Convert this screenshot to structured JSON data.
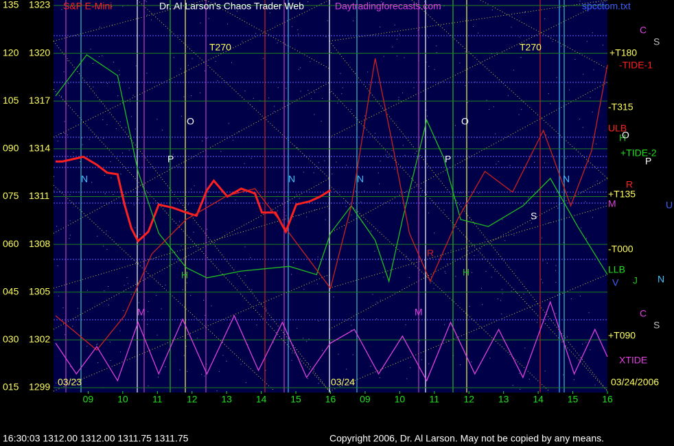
{
  "chart_data": {
    "type": "line",
    "title": "Dr. Al Larson's Chaos Trader Web",
    "subtitle": "S&P E-Mini",
    "source": "Daytradingforecasts.com",
    "file": "spcctom.txt",
    "dates": [
      "03/23",
      "03/24",
      "03/24/2006"
    ],
    "quote": "16:30:03  1312.00 1312.00 1311.75 1311.75",
    "copyright": "Copyright 2006, Dr. Al Larson. May not be copied by any means.",
    "xlim": [
      8,
      24
    ],
    "xticks": [
      {
        "value": 9,
        "label": "09"
      },
      10,
      11,
      12,
      13,
      14,
      15,
      16,
      {
        "value": 17,
        "label": "09"
      },
      {
        "value": 18,
        "label": "10"
      },
      {
        "value": 19,
        "label": "11"
      },
      {
        "value": 20,
        "label": "12"
      },
      {
        "value": 21,
        "label": "13"
      },
      {
        "value": 22,
        "label": "14"
      },
      {
        "value": 23,
        "label": "15"
      },
      {
        "value": 24,
        "label": "16"
      }
    ],
    "ylim": [
      1299,
      1323
    ],
    "yticks": [
      1323,
      1320,
      1317,
      1314,
      1311,
      1308,
      1305,
      1302,
      1299
    ],
    "y2lim": [
      15,
      135
    ],
    "y2ticks": [
      135,
      120,
      105,
      {
        "value": 90,
        "label": "090"
      },
      {
        "value": 75,
        "label": "075"
      },
      {
        "value": 60,
        "label": "060"
      },
      {
        "value": 45,
        "label": "045"
      },
      {
        "value": 30,
        "label": "030"
      },
      {
        "value": 15,
        "label": "015"
      }
    ],
    "grid": true,
    "series": [
      {
        "color": "#ff2020",
        "x": [
          8.06,
          8.26,
          8.86,
          9.25,
          9.55,
          9.85,
          10.05,
          10.25,
          10.44,
          10.74,
          11.04,
          11.44,
          11.83,
          12.13,
          12.43,
          12.63,
          13.02,
          13.42,
          13.82,
          14.02,
          14.41,
          14.71,
          15.01,
          15.4,
          15.7,
          16.0
        ],
        "values": [
          1313.2,
          1313.2,
          1313.5,
          1313.0,
          1312.5,
          1312.4,
          1310.5,
          1309.0,
          1308.2,
          1308.8,
          1310.5,
          1310.3,
          1310.0,
          1309.8,
          1311.4,
          1312.0,
          1311.0,
          1311.5,
          1311.2,
          1310.0,
          1310.0,
          1308.8,
          1310.5,
          1310.7,
          1311.0,
          1311.4
        ]
      },
      {
        "color": "#20c020",
        "axis": "y2",
        "x": [
          8.06,
          8.96,
          9.85,
          10.44,
          11.04,
          11.83,
          12.43,
          13.42,
          14.81,
          15.6,
          16.0,
          16.6,
          17.29,
          17.69,
          18.08,
          18.78,
          19.27,
          19.76,
          20.56,
          21.56,
          22.35,
          23.14,
          24.0
        ],
        "values": [
          106.6,
          119.5,
          113.0,
          82.9,
          63.5,
          52.7,
          49.5,
          51.6,
          53.1,
          50.5,
          63.5,
          72.1,
          61.3,
          48.4,
          67.8,
          99.0,
          87.2,
          67.8,
          65.6,
          72.1,
          80.7,
          65.6,
          50.5
        ]
      },
      {
        "color": "#d02020",
        "axis": "y2",
        "x": [
          8.06,
          9.25,
          10.05,
          10.84,
          11.83,
          13.02,
          13.82,
          14.81,
          16.0,
          16.6,
          17.29,
          17.79,
          18.28,
          18.88,
          19.67,
          20.46,
          21.26,
          22.15,
          22.94,
          23.54,
          24.0
        ],
        "values": [
          37.6,
          26.8,
          37.6,
          57.0,
          67.8,
          75.3,
          77.5,
          63.5,
          46.2,
          72.1,
          118.4,
          91.5,
          63.5,
          48.4,
          67.8,
          82.9,
          76.4,
          95.8,
          72.1,
          89.3,
          116.3
        ]
      },
      {
        "color": "#e040e0",
        "axis": "y2",
        "x": [
          8.06,
          8.66,
          9.25,
          9.85,
          10.44,
          11.04,
          11.73,
          12.43,
          13.22,
          13.92,
          14.61,
          15.31,
          16.0,
          16.69,
          17.39,
          18.08,
          18.78,
          19.47,
          20.17,
          20.86,
          21.56,
          22.35,
          23.04,
          23.64,
          24.0
        ],
        "values": [
          29.0,
          19.3,
          27.9,
          17.2,
          35.5,
          19.3,
          36.5,
          19.3,
          37.6,
          20.4,
          35.5,
          18.2,
          29.0,
          33.3,
          19.3,
          31.2,
          17.2,
          35.5,
          19.3,
          33.3,
          18.2,
          41.9,
          19.3,
          33.3,
          24.7
        ]
      }
    ],
    "annotations": [
      {
        "text": "T270",
        "color": "#ffff60"
      },
      {
        "text": "T270",
        "color": "#ffff60"
      },
      {
        "text": "O",
        "color": "#ffffff"
      },
      {
        "text": "P",
        "color": "#ffffff"
      },
      {
        "text": "N",
        "color": "#40c0ff"
      },
      {
        "text": "H",
        "color": "#20c020"
      },
      {
        "text": "M",
        "color": "#e040e0"
      },
      {
        "text": "N",
        "color": "#40c0ff"
      },
      {
        "text": "N",
        "color": "#40c0ff"
      },
      {
        "text": "P",
        "color": "#ffffff"
      },
      {
        "text": "O",
        "color": "#ffffff"
      },
      {
        "text": "H",
        "color": "#20c020"
      },
      {
        "text": "M",
        "color": "#e040e0"
      },
      {
        "text": "R",
        "color": "#d02020"
      },
      {
        "text": "S",
        "color": "#ffffff"
      },
      {
        "text": "N",
        "color": "#40c0ff"
      },
      {
        "text": "+T180",
        "color": "#ffff60"
      },
      {
        "text": "-TIDE-1",
        "color": "#ff2020"
      },
      {
        "text": "-T315",
        "color": "#ffff60"
      },
      {
        "text": "ULB",
        "color": "#ff2020"
      },
      {
        "text": "H",
        "color": "#20c020"
      },
      {
        "text": "O",
        "color": "#ffffff"
      },
      {
        "text": "+TIDE-2",
        "color": "#20e020"
      },
      {
        "text": "P",
        "color": "#ffffff"
      },
      {
        "text": "R",
        "color": "#ff2020"
      },
      {
        "text": "+T135",
        "color": "#ffff60"
      },
      {
        "text": "M",
        "color": "#e040e0"
      },
      {
        "text": "-T000",
        "color": "#ffff60"
      },
      {
        "text": "LLB",
        "color": "#20e020"
      },
      {
        "text": "V",
        "color": "#4060ff"
      },
      {
        "text": "J",
        "color": "#20c020"
      },
      {
        "text": "N",
        "color": "#40c0ff"
      },
      {
        "text": "+T090",
        "color": "#ffff60"
      },
      {
        "text": "XTIDE",
        "color": "#e040e0"
      },
      {
        "text": "C",
        "color": "#e040e0"
      },
      {
        "text": "S",
        "color": "#c0c0c0"
      },
      {
        "text": "C",
        "color": "#e040e0"
      },
      {
        "text": "S",
        "color": "#c0c0c0"
      },
      {
        "text": "U",
        "color": "#4060ff"
      }
    ]
  }
}
